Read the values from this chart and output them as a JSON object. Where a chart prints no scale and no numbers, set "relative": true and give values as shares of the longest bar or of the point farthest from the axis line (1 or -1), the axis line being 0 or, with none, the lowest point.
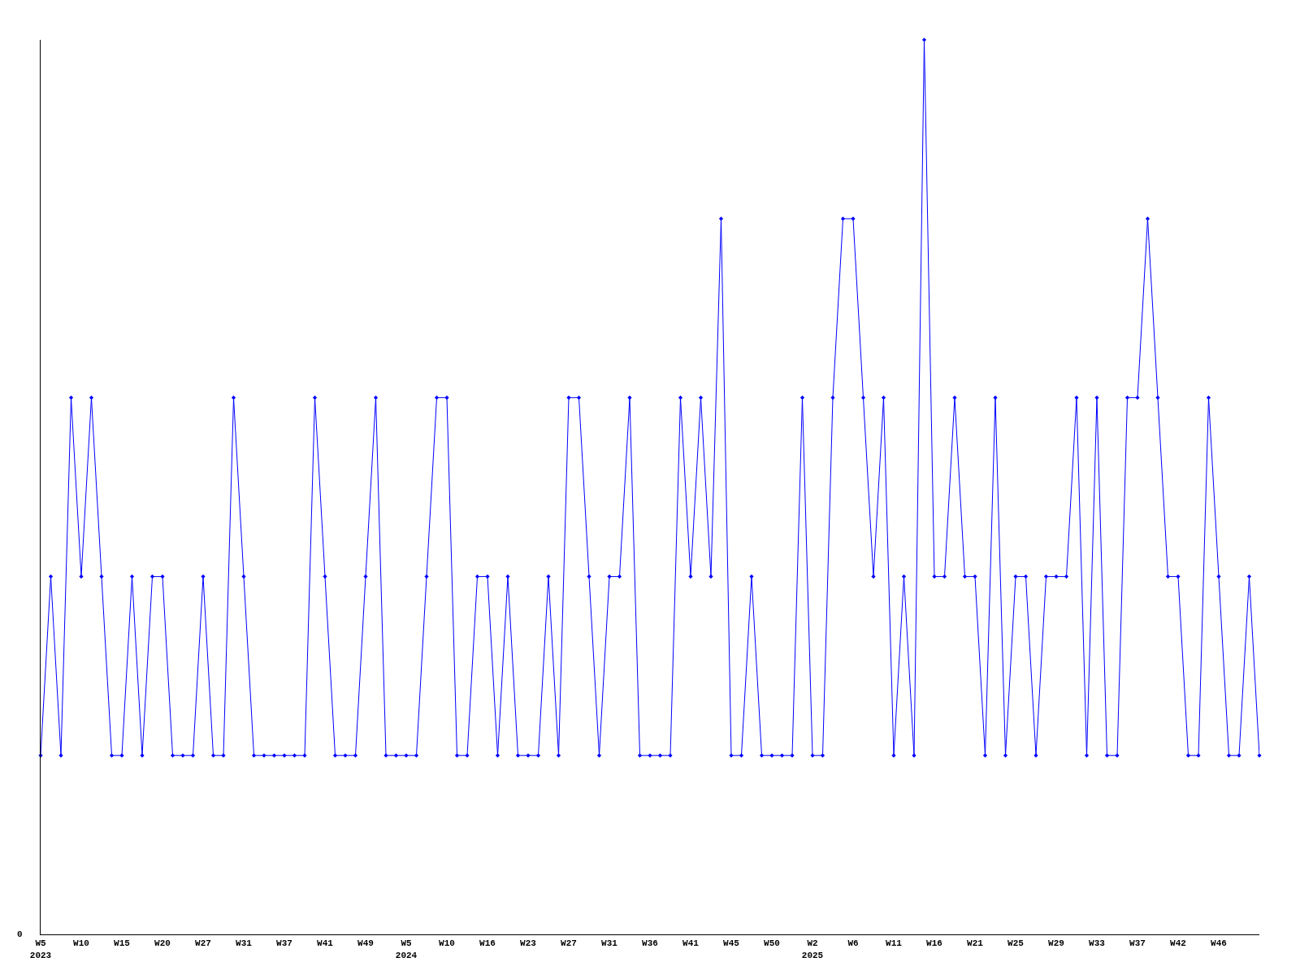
{
  "chart_data": {
    "type": "line",
    "relative": true,
    "marker": "diamond",
    "line_style": "solid",
    "legend": false,
    "annotations": [
      "0"
    ],
    "categories": [
      "W5\n2023",
      null,
      null,
      null,
      "W10",
      null,
      null,
      null,
      "W15",
      null,
      null,
      null,
      "W20",
      null,
      null,
      null,
      "W27",
      null,
      null,
      null,
      "W31",
      null,
      null,
      null,
      "W37",
      null,
      null,
      null,
      "W41",
      null,
      null,
      null,
      "W49",
      null,
      null,
      null,
      "W5\n2024",
      null,
      null,
      null,
      "W10",
      null,
      null,
      null,
      "W16",
      null,
      null,
      null,
      "W23",
      null,
      null,
      null,
      "W27",
      null,
      null,
      null,
      "W31",
      null,
      null,
      null,
      "W36",
      null,
      null,
      null,
      "W41",
      null,
      null,
      null,
      "W45",
      null,
      null,
      null,
      "W50",
      null,
      null,
      null,
      "W2\n2025",
      null,
      null,
      null,
      "W6",
      null,
      null,
      null,
      "W11",
      null,
      null,
      null,
      "W16",
      null,
      null,
      null,
      "W21",
      null,
      null,
      null,
      "W25",
      null,
      null,
      null,
      "W29",
      null,
      null,
      null,
      "W33",
      null,
      null,
      null,
      "W37",
      null,
      null,
      null,
      "W42",
      null,
      null,
      null,
      "W46",
      null,
      null,
      null,
      null
    ],
    "series": [
      {
        "color": "#0000ff",
        "values": [
          0.2,
          0.4,
          0.2,
          0.6,
          0.4,
          0.6,
          0.4,
          0.2,
          0.2,
          0.4,
          0.2,
          0.4,
          0.4,
          0.2,
          0.2,
          0.2,
          0.4,
          0.2,
          0.2,
          0.6,
          0.4,
          0.2,
          0.2,
          0.2,
          0.2,
          0.2,
          0.2,
          0.6,
          0.4,
          0.2,
          0.2,
          0.2,
          0.4,
          0.6,
          0.2,
          0.2,
          0.2,
          0.2,
          0.4,
          0.6,
          0.6,
          0.2,
          0.2,
          0.4,
          0.4,
          0.2,
          0.4,
          0.2,
          0.2,
          0.2,
          0.4,
          0.2,
          0.6,
          0.6,
          0.4,
          0.2,
          0.4,
          0.4,
          0.6,
          0.2,
          0.2,
          0.2,
          0.2,
          0.6,
          0.4,
          0.6,
          0.4,
          0.8,
          0.2,
          0.2,
          0.4,
          0.2,
          0.2,
          0.2,
          0.2,
          0.6,
          0.2,
          0.2,
          0.6,
          0.8,
          0.8,
          0.6,
          0.4,
          0.6,
          0.2,
          0.4,
          0.2,
          1.0,
          0.4,
          0.4,
          0.6,
          0.4,
          0.4,
          0.2,
          0.6,
          0.2,
          0.4,
          0.4,
          0.2,
          0.4,
          0.4,
          0.4,
          0.6,
          0.2,
          0.6,
          0.2,
          0.2,
          0.6,
          0.6,
          0.8,
          0.6,
          0.4,
          0.4,
          0.2,
          0.2,
          0.6,
          0.4,
          0.2,
          0.2,
          0.4,
          0.2
        ]
      }
    ]
  }
}
